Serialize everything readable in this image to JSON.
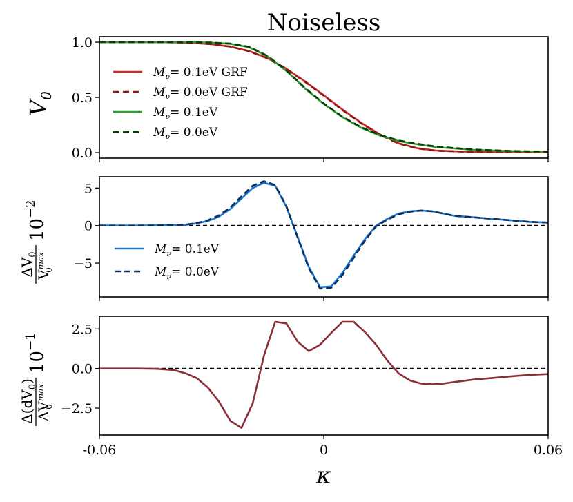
{
  "figure_title": "Noiseless",
  "chart_data": [
    {
      "type": "line",
      "panel": "top",
      "ylabel": "V",
      "ylabel_sub": "0",
      "xlim": [
        -0.06,
        0.06
      ],
      "ylim": [
        -0.05,
        1.05
      ],
      "yticks": [
        0.0,
        0.5,
        1.0
      ],
      "ytick_labels": [
        "0.0",
        "0.5",
        "1.0"
      ],
      "xtick_labels_visible": false,
      "legend_position": "upper-left",
      "series": [
        {
          "name": "M_ν= 0.1eV GRF",
          "legend_text": {
            "m": "M",
            "sub": "ν",
            "rest": "= 0.1eV GRF"
          },
          "color": "#d62728",
          "dash": "solid",
          "x": [
            -0.06,
            -0.05,
            -0.04,
            -0.035,
            -0.03,
            -0.025,
            -0.02,
            -0.015,
            -0.01,
            -0.005,
            0.0,
            0.005,
            0.01,
            0.015,
            0.02,
            0.025,
            0.03,
            0.04,
            0.05,
            0.06
          ],
          "values": [
            1.0,
            1.0,
            0.998,
            0.993,
            0.982,
            0.96,
            0.92,
            0.855,
            0.76,
            0.645,
            0.52,
            0.39,
            0.27,
            0.165,
            0.085,
            0.04,
            0.018,
            0.006,
            0.003,
            0.002
          ]
        },
        {
          "name": "M_ν= 0.0eV GRF",
          "legend_text": {
            "m": "M",
            "sub": "ν",
            "rest": "= 0.0eV GRF"
          },
          "color": "#8b1a10",
          "dash": "dashed",
          "x": [
            -0.06,
            -0.05,
            -0.04,
            -0.035,
            -0.03,
            -0.025,
            -0.02,
            -0.015,
            -0.01,
            -0.005,
            0.0,
            0.005,
            0.01,
            0.015,
            0.02,
            0.025,
            0.03,
            0.04,
            0.05,
            0.06
          ],
          "values": [
            1.0,
            1.0,
            0.998,
            0.993,
            0.982,
            0.96,
            0.918,
            0.852,
            0.757,
            0.64,
            0.515,
            0.385,
            0.265,
            0.16,
            0.082,
            0.038,
            0.017,
            0.006,
            0.003,
            0.002
          ]
        },
        {
          "name": "M_ν= 0.1eV",
          "legend_text": {
            "m": "M",
            "sub": "ν",
            "rest": "= 0.1eV"
          },
          "color": "#2ca02c",
          "dash": "solid",
          "x": [
            -0.06,
            -0.05,
            -0.04,
            -0.035,
            -0.03,
            -0.025,
            -0.02,
            -0.015,
            -0.01,
            -0.005,
            0.0,
            0.005,
            0.01,
            0.015,
            0.02,
            0.025,
            0.03,
            0.04,
            0.05,
            0.06
          ],
          "values": [
            1.0,
            1.0,
            1.0,
            0.999,
            0.995,
            0.985,
            0.955,
            0.87,
            0.74,
            0.58,
            0.44,
            0.32,
            0.225,
            0.155,
            0.105,
            0.075,
            0.05,
            0.025,
            0.013,
            0.007
          ]
        },
        {
          "name": "M_ν= 0.0eV",
          "legend_text": {
            "m": "M",
            "sub": "ν",
            "rest": "= 0.0eV"
          },
          "color": "#0b3d0b",
          "dash": "dashed",
          "x": [
            -0.06,
            -0.05,
            -0.04,
            -0.035,
            -0.03,
            -0.025,
            -0.02,
            -0.015,
            -0.01,
            -0.005,
            0.0,
            0.005,
            0.01,
            0.015,
            0.02,
            0.025,
            0.03,
            0.04,
            0.05,
            0.06
          ],
          "values": [
            1.0,
            1.0,
            1.0,
            0.999,
            0.996,
            0.987,
            0.958,
            0.875,
            0.745,
            0.585,
            0.445,
            0.325,
            0.23,
            0.16,
            0.11,
            0.08,
            0.055,
            0.028,
            0.015,
            0.008
          ]
        }
      ]
    },
    {
      "type": "line",
      "panel": "middle",
      "ylabel_num": "ΔV",
      "ylabel_num_sub": "0",
      "ylabel_den": "V",
      "ylabel_den_sup": "max",
      "ylabel_den_sub": "0",
      "ylabel_factor": "10",
      "ylabel_factor_exp": "−2",
      "xlim": [
        -0.06,
        0.06
      ],
      "ylim": [
        -9.5,
        6.5
      ],
      "yticks": [
        -5,
        0,
        5
      ],
      "ytick_labels": [
        "−5",
        "0",
        "5"
      ],
      "xtick_labels_visible": false,
      "reference_line": 0,
      "legend_position": "lower-left",
      "series": [
        {
          "name": "M_ν= 0.1eV",
          "legend_text": {
            "m": "M",
            "sub": "ν",
            "rest": "= 0.1eV"
          },
          "color": "#1f77d4",
          "dash": "solid",
          "x": [
            -0.06,
            -0.05,
            -0.04,
            -0.037,
            -0.034,
            -0.031,
            -0.028,
            -0.025,
            -0.022,
            -0.019,
            -0.016,
            -0.013,
            -0.01,
            -0.007,
            -0.004,
            -0.001,
            0.002,
            0.005,
            0.008,
            0.011,
            0.014,
            0.017,
            0.02,
            0.023,
            0.026,
            0.029,
            0.032,
            0.035,
            0.04,
            0.045,
            0.05,
            0.055,
            0.06
          ],
          "values": [
            0.0,
            0.0,
            0.05,
            0.1,
            0.3,
            0.6,
            1.2,
            2.2,
            3.6,
            5.0,
            5.7,
            5.3,
            2.5,
            -1.5,
            -5.5,
            -8.2,
            -8.1,
            -6.3,
            -4.0,
            -1.8,
            0.0,
            0.9,
            1.6,
            1.9,
            2.0,
            1.9,
            1.6,
            1.3,
            1.1,
            0.9,
            0.7,
            0.5,
            0.4
          ]
        },
        {
          "name": "M_ν= 0.0eV",
          "legend_text": {
            "m": "M",
            "sub": "ν",
            "rest": "= 0.0eV"
          },
          "color": "#0d2f5a",
          "dash": "dashed",
          "x": [
            -0.06,
            -0.05,
            -0.04,
            -0.037,
            -0.034,
            -0.031,
            -0.028,
            -0.025,
            -0.022,
            -0.019,
            -0.016,
            -0.013,
            -0.01,
            -0.007,
            -0.004,
            -0.001,
            0.002,
            0.005,
            0.008,
            0.011,
            0.014,
            0.017,
            0.02,
            0.023,
            0.026,
            0.029,
            0.032,
            0.035,
            0.04,
            0.045,
            0.05,
            0.055,
            0.06
          ],
          "values": [
            0.0,
            0.0,
            0.05,
            0.12,
            0.35,
            0.7,
            1.35,
            2.4,
            3.9,
            5.3,
            5.9,
            5.4,
            2.6,
            -1.6,
            -5.7,
            -8.4,
            -8.3,
            -6.6,
            -4.3,
            -2.0,
            -0.1,
            0.8,
            1.5,
            1.85,
            2.0,
            1.9,
            1.6,
            1.3,
            1.1,
            0.9,
            0.7,
            0.5,
            0.4
          ]
        }
      ]
    },
    {
      "type": "line",
      "panel": "bottom",
      "ylabel_num": "Δ(dV",
      "ylabel_num_sub": "0",
      "ylabel_num_tail": ")",
      "ylabel_den": "ΔV",
      "ylabel_den_sup": "max",
      "ylabel_den_sub": "0",
      "ylabel_factor": "10",
      "ylabel_factor_exp": "−1",
      "xlabel": "κ",
      "xlim": [
        -0.06,
        0.06
      ],
      "ylim": [
        -4.2,
        3.3
      ],
      "yticks": [
        -2.5,
        0.0,
        2.5
      ],
      "ytick_labels": [
        "−2.5",
        "0.0",
        "2.5"
      ],
      "xticks": [
        -0.06,
        0,
        0.06
      ],
      "xtick_labels": [
        "-0.06",
        "0",
        "0.06"
      ],
      "reference_line": 0,
      "series": [
        {
          "name": "",
          "color": "#8b2e38",
          "dash": "solid",
          "x": [
            -0.06,
            -0.05,
            -0.045,
            -0.04,
            -0.037,
            -0.034,
            -0.031,
            -0.028,
            -0.025,
            -0.022,
            -0.019,
            -0.016,
            -0.013,
            -0.01,
            -0.007,
            -0.004,
            -0.001,
            0.002,
            0.005,
            0.008,
            0.011,
            0.014,
            0.017,
            0.02,
            0.023,
            0.026,
            0.029,
            0.032,
            0.035,
            0.04,
            0.045,
            0.05,
            0.055,
            0.06
          ],
          "values": [
            0.0,
            0.0,
            -0.02,
            -0.1,
            -0.3,
            -0.6,
            -1.2,
            -2.1,
            -3.3,
            -3.75,
            -2.2,
            0.8,
            2.95,
            2.85,
            1.7,
            1.1,
            1.5,
            2.25,
            2.95,
            2.95,
            2.3,
            1.5,
            0.5,
            -0.3,
            -0.75,
            -0.95,
            -1.0,
            -0.95,
            -0.85,
            -0.7,
            -0.6,
            -0.5,
            -0.4,
            -0.35
          ]
        }
      ]
    }
  ]
}
